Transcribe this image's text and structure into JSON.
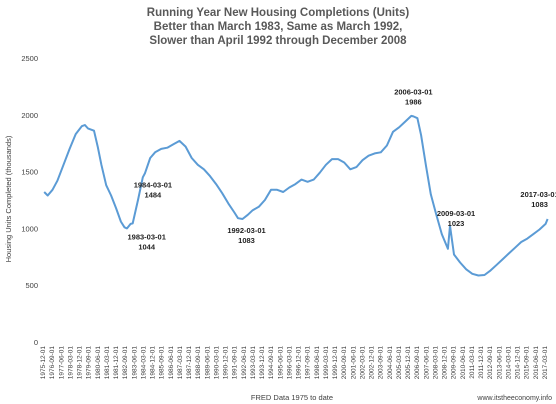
{
  "chart_data": {
    "type": "line",
    "title_lines": [
      "Running Year New Housing Completions (Units)",
      "Better than March  1983, Same as March 1992,",
      "Slower than April 1992 through December 2008"
    ],
    "ylabel": "Housing Units Completed (thousands)",
    "xlabel": "FRED Data 1975 to date",
    "source": "www.itstheeconomy.info",
    "ylim": [
      0,
      2500
    ],
    "yticks": [
      0,
      500,
      1000,
      1500,
      2000,
      2500
    ],
    "xlim": [
      1975.9,
      2017.2
    ],
    "line_color": "#5B9BD5",
    "x_tick_labels": [
      "1975-12-01",
      "1976-09-01",
      "1977-06-01",
      "1978-03-01",
      "1978-12-01",
      "1979-09-01",
      "1980-06-01",
      "1981-03-01",
      "1981-12-01",
      "1982-09-01",
      "1983-06-01",
      "1984-03-01",
      "1984-12-01",
      "1985-09-01",
      "1986-06-01",
      "1987-03-01",
      "1987-12-01",
      "1988-09-01",
      "1989-06-01",
      "1990-03-01",
      "1990-12-01",
      "1991-09-01",
      "1992-06-01",
      "1993-03-01",
      "1993-12-01",
      "1994-09-01",
      "1995-06-01",
      "1996-03-01",
      "1996-12-01",
      "1997-09-01",
      "1998-06-01",
      "1999-03-01",
      "1999-12-01",
      "2000-09-01",
      "2001-06-01",
      "2002-03-01",
      "2002-12-01",
      "2003-09-01",
      "2004-06-01",
      "2005-03-01",
      "2005-12-01",
      "2006-09-01",
      "2007-06-01",
      "2008-03-01",
      "2008-12-01",
      "2009-09-01",
      "2010-06-01",
      "2011-03-01",
      "2011-12-01",
      "2012-09-01",
      "2013-06-01",
      "2014-03-01",
      "2014-12-01",
      "2015-09-01",
      "2016-06-01",
      "2017-03-01"
    ],
    "series": [
      {
        "x": [
          1975.92,
          1976.2,
          1976.6,
          1977.0,
          1977.5,
          1978.0,
          1978.5,
          1979.0,
          1979.25,
          1979.5,
          1980.0,
          1980.3,
          1980.6,
          1981.0,
          1981.4,
          1981.8,
          1982.2,
          1982.5,
          1982.7,
          1983.0,
          1983.17,
          1983.6,
          1984.0,
          1984.17,
          1984.6,
          1985.0,
          1985.5,
          1986.0,
          1986.5,
          1987.0,
          1987.5,
          1988.0,
          1988.5,
          1989.0,
          1989.5,
          1990.0,
          1990.5,
          1991.0,
          1991.5,
          1991.8,
          1992.17,
          1992.6,
          1993.0,
          1993.5,
          1994.0,
          1994.5,
          1995.0,
          1995.5,
          1996.0,
          1996.5,
          1997.0,
          1997.5,
          1998.0,
          1998.5,
          1999.0,
          1999.5,
          2000.0,
          2000.5,
          2001.0,
          2001.5,
          2002.0,
          2002.5,
          2003.0,
          2003.5,
          2004.0,
          2004.5,
          2005.0,
          2005.5,
          2006.0,
          2006.17,
          2006.5,
          2006.8,
          2007.2,
          2007.6,
          2008.0,
          2008.5,
          2009.0,
          2009.17,
          2009.5,
          2010.0,
          2010.5,
          2011.0,
          2011.5,
          2012.0,
          2012.5,
          2013.0,
          2013.5,
          2014.0,
          2014.5,
          2015.0,
          2015.5,
          2016.0,
          2016.5,
          2017.0,
          2017.17
        ],
        "y": [
          1320,
          1290,
          1340,
          1420,
          1560,
          1700,
          1830,
          1900,
          1910,
          1880,
          1860,
          1720,
          1560,
          1380,
          1290,
          1180,
          1060,
          1010,
          1000,
          1040,
          1044,
          1250,
          1450,
          1484,
          1620,
          1670,
          1700,
          1710,
          1740,
          1770,
          1720,
          1620,
          1560,
          1520,
          1460,
          1390,
          1310,
          1220,
          1140,
          1090,
          1083,
          1120,
          1160,
          1190,
          1250,
          1340,
          1340,
          1320,
          1360,
          1390,
          1430,
          1410,
          1430,
          1490,
          1560,
          1610,
          1610,
          1580,
          1520,
          1540,
          1600,
          1640,
          1660,
          1670,
          1730,
          1850,
          1890,
          1940,
          1990,
          1986,
          1970,
          1820,
          1550,
          1300,
          1140,
          950,
          820,
          1023,
          770,
          700,
          640,
          600,
          585,
          590,
          630,
          680,
          730,
          780,
          830,
          880,
          910,
          950,
          990,
          1040,
          1083
        ]
      }
    ],
    "annotations": [
      {
        "date": "2006-03-01",
        "value": "1986",
        "x": 2006.17,
        "y": 1986
      },
      {
        "date": "1984-03-01",
        "value": "1484",
        "x": 1984.17,
        "y": 1484
      },
      {
        "date": "1983-03-01",
        "value": "1044",
        "x": 1983.17,
        "y": 1044
      },
      {
        "date": "1992-03-01",
        "value": "1083",
        "x": 1992.17,
        "y": 1083
      },
      {
        "date": "2009-03-01",
        "value": "1023",
        "x": 2009.17,
        "y": 1023
      },
      {
        "date": "2017-03-01",
        "value": "1083",
        "x": 2017.17,
        "y": 1083
      }
    ]
  }
}
